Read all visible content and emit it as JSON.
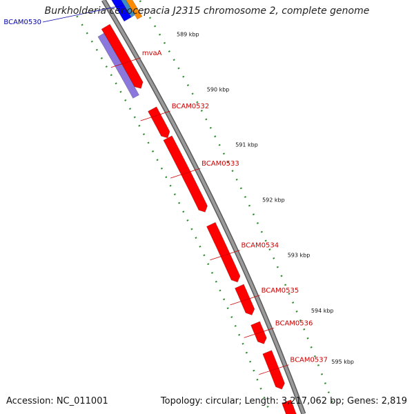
{
  "title": "Burkholderia cenocepacia J2315 chromosome 2, complete genome",
  "accession": "Accession: NC_011001",
  "summary": "Topology: circular; Length: 3,217,062 bp; Genes: 2,819",
  "colors": {
    "forward_gene": "#ff0000",
    "reverse_gene": "#0000ff",
    "forward_label": "#cc0000",
    "reverse_label": "#0000aa",
    "backbone": "#8a8a8a",
    "dotted_ring": "#2e8b2e",
    "purple_gene": "#8c78dc",
    "orange_gene": "#ff8c00",
    "teal_gene": "#3c8cc8"
  },
  "ticks": [
    {
      "label": "589 kbp"
    },
    {
      "label": "590 kbp"
    },
    {
      "label": "591 kbp"
    },
    {
      "label": "592 kbp"
    },
    {
      "label": "593 kbp"
    },
    {
      "label": "594 kbp"
    },
    {
      "label": "595 kbp"
    }
  ],
  "gene_labels": [
    {
      "label": "BCAM0530",
      "strand": "reverse"
    },
    {
      "label": "mvaA",
      "strand": "forward"
    },
    {
      "label": "BCAM0532",
      "strand": "forward"
    },
    {
      "label": "BCAM0533",
      "strand": "forward"
    },
    {
      "label": "BCAM0534",
      "strand": "forward"
    },
    {
      "label": "BCAM0535",
      "strand": "forward"
    },
    {
      "label": "BCAM0536",
      "strand": "forward"
    },
    {
      "label": "BCAM0537",
      "strand": "forward"
    }
  ]
}
